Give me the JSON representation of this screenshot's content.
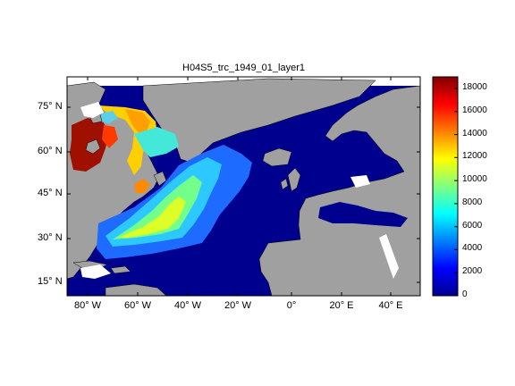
{
  "title": "H04S5_trc_1949_01_layer1",
  "map": {
    "lon_range": [
      -95,
      47
    ],
    "lat_range": [
      10,
      85
    ],
    "lat_ticks": [
      "15° N",
      "30° N",
      "45° N",
      "60° N",
      "75° N"
    ],
    "lon_ticks": [
      "80° W",
      "60° W",
      "40° W",
      "20° W",
      "0°",
      "20° E",
      "40° E"
    ],
    "colors": {
      "land": "#a0a0a0",
      "ocean_zero": "#00008f",
      "nodata": "#ffffff",
      "frame": "#000000"
    }
  },
  "colorbar": {
    "ticks": [
      "0",
      "2000",
      "4000",
      "6000",
      "8000",
      "10000",
      "12000",
      "14000",
      "16000",
      "18000"
    ],
    "range": [
      0,
      19000
    ],
    "colormap": "jet"
  }
}
